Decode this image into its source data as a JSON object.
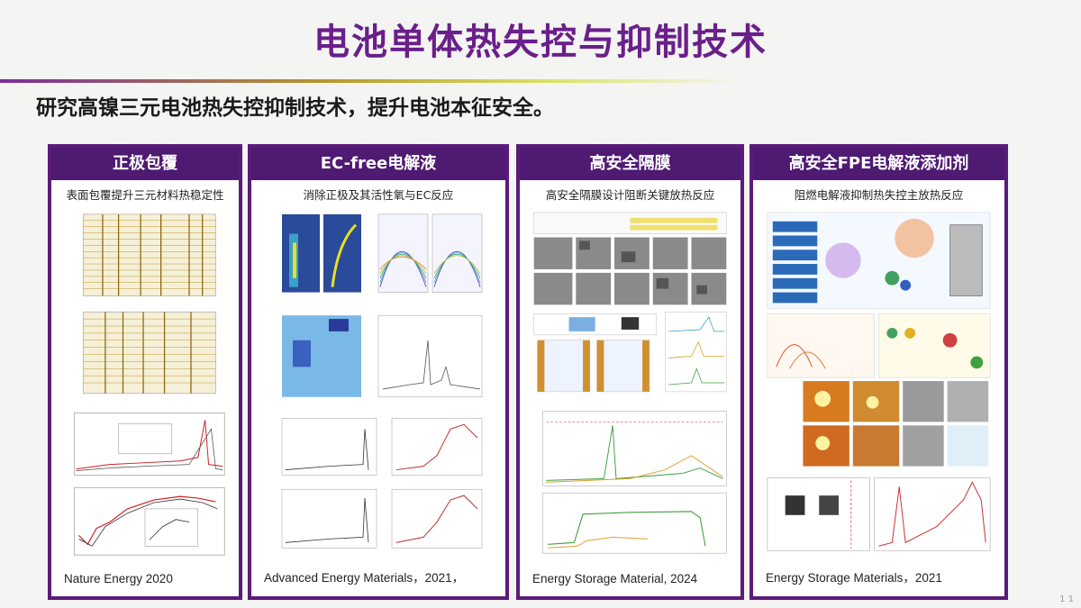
{
  "title": "电池单体热失控与抑制技术",
  "subtitle": "研究高镍三元电池热失控抑制技术，提升电池本征安全。",
  "panels": [
    {
      "heading": "正极包覆",
      "caption": "表面包覆提升三元材料热稳定性",
      "reference": "Nature Energy 2020"
    },
    {
      "heading": "EC-free电解液",
      "caption": "消除正极及其活性氧与EC反应",
      "reference": "Advanced Energy Materials，2021，"
    },
    {
      "heading": "高安全隔膜",
      "caption": "高安全隔膜设计阻断关键放热反应",
      "reference": "Energy Storage Material, 2024"
    },
    {
      "heading": "高安全FPE电解液添加剂",
      "caption": "阻燃电解液抑制热失控主放热反应",
      "reference": "Energy Storage Materials，2021"
    }
  ],
  "page_number": "1 1"
}
